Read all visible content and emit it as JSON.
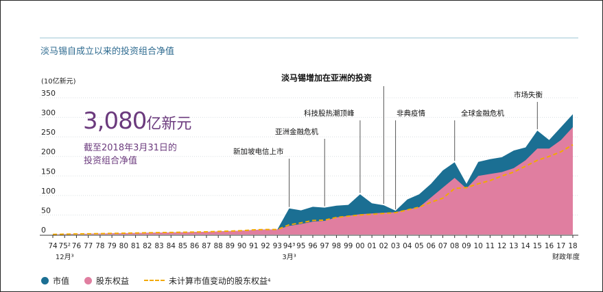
{
  "title": "淡马锡自成立以来的投资组合净值",
  "unit_label": "(10亿新元)",
  "highlight": {
    "value": "3,080",
    "unit": "亿新元",
    "line1": "截至2018年3月31日的",
    "line2": "投资组合净值"
  },
  "colors": {
    "market": "#1b6f93",
    "equity": "#e07ea0",
    "dashed": "#f2a900",
    "title": "#2d6a8f",
    "highlight": "#6b3a7d"
  },
  "legend": {
    "market": "市值",
    "equity": "股东权益",
    "dashed": "未计算市值变动的股东权益",
    "dashed_sup": "4"
  },
  "chart_data": {
    "type": "area",
    "ylim": [
      0,
      350
    ],
    "yticks": [
      0,
      50,
      100,
      150,
      200,
      250,
      300,
      350
    ],
    "xaxis_caption": "财政年度",
    "x_tick_labels": [
      "74",
      "75²",
      "76",
      "77",
      "78",
      "79",
      "80",
      "81",
      "82",
      "83",
      "84",
      "85",
      "86",
      "87",
      "88",
      "89",
      "90",
      "91",
      "92",
      "93",
      "94³",
      "95",
      "96",
      "97",
      "98",
      "99",
      "00",
      "01",
      "02",
      "03",
      "04",
      "05",
      "06",
      "07",
      "08",
      "09",
      "10",
      "11",
      "12",
      "13",
      "14",
      "15",
      "16",
      "17",
      "18"
    ],
    "x_sub_labels": [
      {
        "text": "12月³",
        "at": 1
      },
      {
        "text": "3月³",
        "at": 20
      }
    ],
    "series": [
      {
        "name": "市值",
        "values": [
          0.4,
          1,
          1.5,
          2,
          2.5,
          3,
          3.5,
          4,
          4.5,
          5,
          5.5,
          6,
          6.5,
          7,
          8,
          9,
          10,
          12,
          13,
          13,
          67,
          62,
          71,
          69,
          74,
          76,
          103,
          80,
          75,
          61,
          90,
          103,
          130,
          164,
          185,
          130,
          186,
          193,
          198,
          215,
          223,
          266,
          242,
          275,
          308
        ]
      },
      {
        "name": "股东权益",
        "values": [
          0.3,
          1,
          1.5,
          2,
          2.5,
          3,
          3.5,
          4,
          4.5,
          5,
          5.5,
          6,
          6.5,
          7,
          8,
          9,
          10,
          12,
          13,
          13,
          22,
          27,
          33,
          35,
          44,
          48,
          52,
          54,
          56,
          57,
          64,
          70,
          95,
          120,
          145,
          118,
          150,
          155,
          160,
          170,
          190,
          220,
          220,
          242,
          275
        ]
      },
      {
        "name": "未计算市值变动的股东权益",
        "values": [
          0.3,
          1,
          1.5,
          2,
          2.5,
          3,
          3.5,
          4,
          4.5,
          5,
          5.5,
          6,
          6.5,
          7,
          8,
          9,
          10,
          12,
          13,
          13,
          25,
          30,
          36,
          37,
          44,
          47,
          50,
          52,
          54,
          56,
          63,
          70,
          83,
          93,
          118,
          120,
          130,
          138,
          150,
          160,
          175,
          190,
          200,
          212,
          230
        ]
      }
    ],
    "annotations": [
      {
        "text": "新加坡电信上市",
        "at": 20
      },
      {
        "text": "亚洲金融危机",
        "at": 23
      },
      {
        "text": "科技股热潮顶峰",
        "at": 26
      },
      {
        "text": "淡马锡增加在亚洲的投资",
        "at": 28
      },
      {
        "text": "非典疫情",
        "at": 29
      },
      {
        "text": "全球金融危机",
        "at": 34
      },
      {
        "text": "市场失衡",
        "at": 41
      }
    ]
  }
}
